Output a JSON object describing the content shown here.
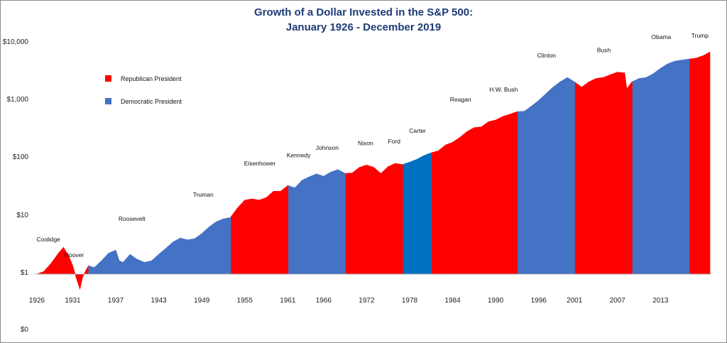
{
  "chart_data": {
    "type": "area",
    "title": "Growth of a Dollar Invested in the S&P 500:",
    "subtitle": "January 1926 - December 2019",
    "y_scale": "log",
    "y_ticks": [
      "$10,000",
      "$1,000",
      "$100",
      "$10",
      "$1",
      "$0"
    ],
    "x_ticks": [
      "1926",
      "1931",
      "1937",
      "1943",
      "1949",
      "1955",
      "1961",
      "1966",
      "1972",
      "1978",
      "1984",
      "1990",
      "1996",
      "2001",
      "2007",
      "2013"
    ],
    "legend": [
      {
        "label": "Republican President",
        "color": "#ff0000"
      },
      {
        "label": "Democratic President",
        "color": "#4472c4"
      }
    ],
    "legend_position": "top-left",
    "grid": false,
    "colors": {
      "republican": "#ff0000",
      "democratic": "#4472c4",
      "carter": "#0070c0",
      "title": "#1f3a76"
    },
    "series": [
      {
        "x": [
          1926.0,
          1927.0,
          1928.0,
          1929.0,
          1929.7,
          1930.5,
          1931.0,
          1931.5,
          1932.0,
          1932.4,
          1932.8,
          1933.2,
          1934.0,
          1935.0,
          1936.0,
          1937.0,
          1937.5,
          1938.0,
          1939.0,
          1940.0,
          1941.0,
          1942.0,
          1943.0,
          1944.0,
          1945.0,
          1946.0,
          1947.0,
          1948.0,
          1949.0,
          1950.0,
          1951.0,
          1952.0,
          1953.0,
          1954.0,
          1955.0,
          1956.0,
          1957.0,
          1958.0,
          1959.0,
          1960.0,
          1961.0,
          1962.0,
          1963.0,
          1964.0,
          1965.0,
          1966.0,
          1967.0,
          1968.0,
          1969.0,
          1970.0,
          1971.0,
          1972.0,
          1973.0,
          1974.0,
          1975.0,
          1976.0,
          1977.0,
          1978.0,
          1979.0,
          1980.0,
          1981.0,
          1982.0,
          1983.0,
          1984.0,
          1985.0,
          1986.0,
          1987.0,
          1988.0,
          1989.0,
          1990.0,
          1991.0,
          1992.0,
          1993.0,
          1994.0,
          1995.0,
          1996.0,
          1997.0,
          1998.0,
          1999.0,
          2000.0,
          2001.0,
          2002.0,
          2003.0,
          2004.0,
          2005.0,
          2006.0,
          2007.0,
          2008.0,
          2008.3,
          2009.0,
          2010.0,
          2011.0,
          2012.0,
          2013.0,
          2014.0,
          2015.0,
          2016.0,
          2017.0,
          2018.0,
          2019.0,
          2019.9
        ],
        "values": [
          1.0,
          1.12,
          1.55,
          2.3,
          2.9,
          2.0,
          1.4,
          0.85,
          0.55,
          0.9,
          1.15,
          1.4,
          1.3,
          1.7,
          2.3,
          2.6,
          1.7,
          1.6,
          2.2,
          1.8,
          1.6,
          1.7,
          2.2,
          2.8,
          3.6,
          4.2,
          3.9,
          4.1,
          5.0,
          6.5,
          8.0,
          9.0,
          9.5,
          14.0,
          19.0,
          20.0,
          19.0,
          21.0,
          27.0,
          27.0,
          34.0,
          31.0,
          42.0,
          48.0,
          54.0,
          49.0,
          58.0,
          64.0,
          55.0,
          56.0,
          70.0,
          77.0,
          70.0,
          55.0,
          72.0,
          82.0,
          78.0,
          86.0,
          96.0,
          112.0,
          125.0,
          135.0,
          170.0,
          190.0,
          230.0,
          290.0,
          340.0,
          350.0,
          430.0,
          460.0,
          530.0,
          580.0,
          640.0,
          650.0,
          800.0,
          1000.0,
          1300.0,
          1700.0,
          2100.0,
          2500.0,
          2100.0,
          1700.0,
          2100.0,
          2400.0,
          2500.0,
          2800.0,
          3100.0,
          3000.0,
          1600.0,
          2100.0,
          2400.0,
          2500.0,
          2900.0,
          3600.0,
          4300.0,
          4800.0,
          5000.0,
          5200.0,
          5400.0,
          6000.0,
          6900.0
        ]
      }
    ],
    "presidents": [
      {
        "name": "Coolidge",
        "start": 1926.0,
        "end": 1929.2,
        "party": "republican"
      },
      {
        "name": "Hoover",
        "start": 1929.2,
        "end": 1933.2,
        "party": "republican"
      },
      {
        "name": "Roosevelt",
        "start": 1933.2,
        "end": 1945.3,
        "party": "democratic"
      },
      {
        "name": "Truman",
        "start": 1945.3,
        "end": 1953.1,
        "party": "democratic"
      },
      {
        "name": "Eisenhower",
        "start": 1953.1,
        "end": 1961.1,
        "party": "republican"
      },
      {
        "name": "Kennedy",
        "start": 1961.1,
        "end": 1963.9,
        "party": "democratic"
      },
      {
        "name": "Johnson",
        "start": 1963.9,
        "end": 1969.1,
        "party": "democratic"
      },
      {
        "name": "Nixon",
        "start": 1969.1,
        "end": 1974.6,
        "party": "republican"
      },
      {
        "name": "Ford",
        "start": 1974.6,
        "end": 1977.1,
        "party": "republican"
      },
      {
        "name": "Carter",
        "start": 1977.1,
        "end": 1981.1,
        "party": "democratic"
      },
      {
        "name": "Reagan",
        "start": 1981.1,
        "end": 1989.1,
        "party": "republican"
      },
      {
        "name": "H.W. Bush",
        "start": 1989.1,
        "end": 1993.1,
        "party": "republican"
      },
      {
        "name": "Clinton",
        "start": 1993.1,
        "end": 2001.1,
        "party": "democratic"
      },
      {
        "name": "Bush",
        "start": 2001.1,
        "end": 2009.1,
        "party": "republican"
      },
      {
        "name": "Obama",
        "start": 2009.1,
        "end": 2017.1,
        "party": "democratic"
      },
      {
        "name": "Trump",
        "start": 2017.1,
        "end": 2019.9,
        "party": "republican"
      }
    ]
  }
}
